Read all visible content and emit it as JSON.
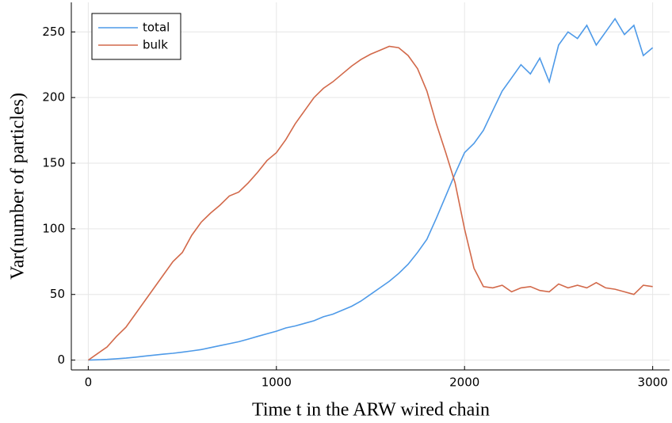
{
  "chart_data": {
    "type": "line",
    "xlabel": "Time t in the ARW wired chain",
    "ylabel": "Var(number of particles)",
    "x": [
      0,
      50,
      100,
      150,
      200,
      250,
      300,
      350,
      400,
      450,
      500,
      550,
      600,
      650,
      700,
      750,
      800,
      850,
      900,
      950,
      1000,
      1050,
      1100,
      1150,
      1200,
      1250,
      1300,
      1350,
      1400,
      1450,
      1500,
      1550,
      1600,
      1650,
      1700,
      1750,
      1800,
      1850,
      1900,
      1950,
      2000,
      2050,
      2100,
      2150,
      2200,
      2250,
      2300,
      2350,
      2400,
      2450,
      2500,
      2550,
      2600,
      2650,
      2700,
      2750,
      2800,
      2850,
      2900,
      2950,
      3000
    ],
    "series": [
      {
        "name": "total",
        "color": "#4e9ae8",
        "values": [
          0,
          0.2,
          0.5,
          1,
          1.5,
          2.2,
          3,
          3.8,
          4.5,
          5.2,
          6,
          7,
          8,
          9.5,
          11,
          12.5,
          14,
          16,
          18,
          20,
          22,
          24.5,
          26,
          28,
          30,
          33,
          35,
          38,
          41,
          45,
          50,
          55,
          60,
          66,
          73,
          82,
          92,
          108,
          125,
          142,
          158,
          165,
          175,
          190,
          205,
          215,
          225,
          218,
          230,
          212,
          240,
          250,
          245,
          255,
          240,
          250,
          260,
          248,
          255,
          232,
          238
        ]
      },
      {
        "name": "bulk",
        "color": "#d2694a",
        "values": [
          0,
          5,
          10,
          18,
          25,
          35,
          45,
          55,
          65,
          75,
          82,
          95,
          105,
          112,
          118,
          125,
          128,
          135,
          143,
          152,
          158,
          168,
          180,
          190,
          200,
          207,
          212,
          218,
          224,
          229,
          233,
          236,
          239,
          238,
          232,
          222,
          205,
          180,
          158,
          135,
          100,
          70,
          56,
          55,
          57,
          52,
          55,
          56,
          53,
          52,
          58,
          55,
          57,
          55,
          59,
          55,
          54,
          52,
          50,
          57,
          56
        ]
      }
    ],
    "xlim": [
      -90,
      3090
    ],
    "xticks": [
      0,
      1000,
      2000,
      3000
    ],
    "ylim": [
      -7.5,
      272.5
    ],
    "yticks": [
      0,
      50,
      100,
      150,
      200,
      250
    ],
    "grid": true,
    "legend": "top-left"
  }
}
